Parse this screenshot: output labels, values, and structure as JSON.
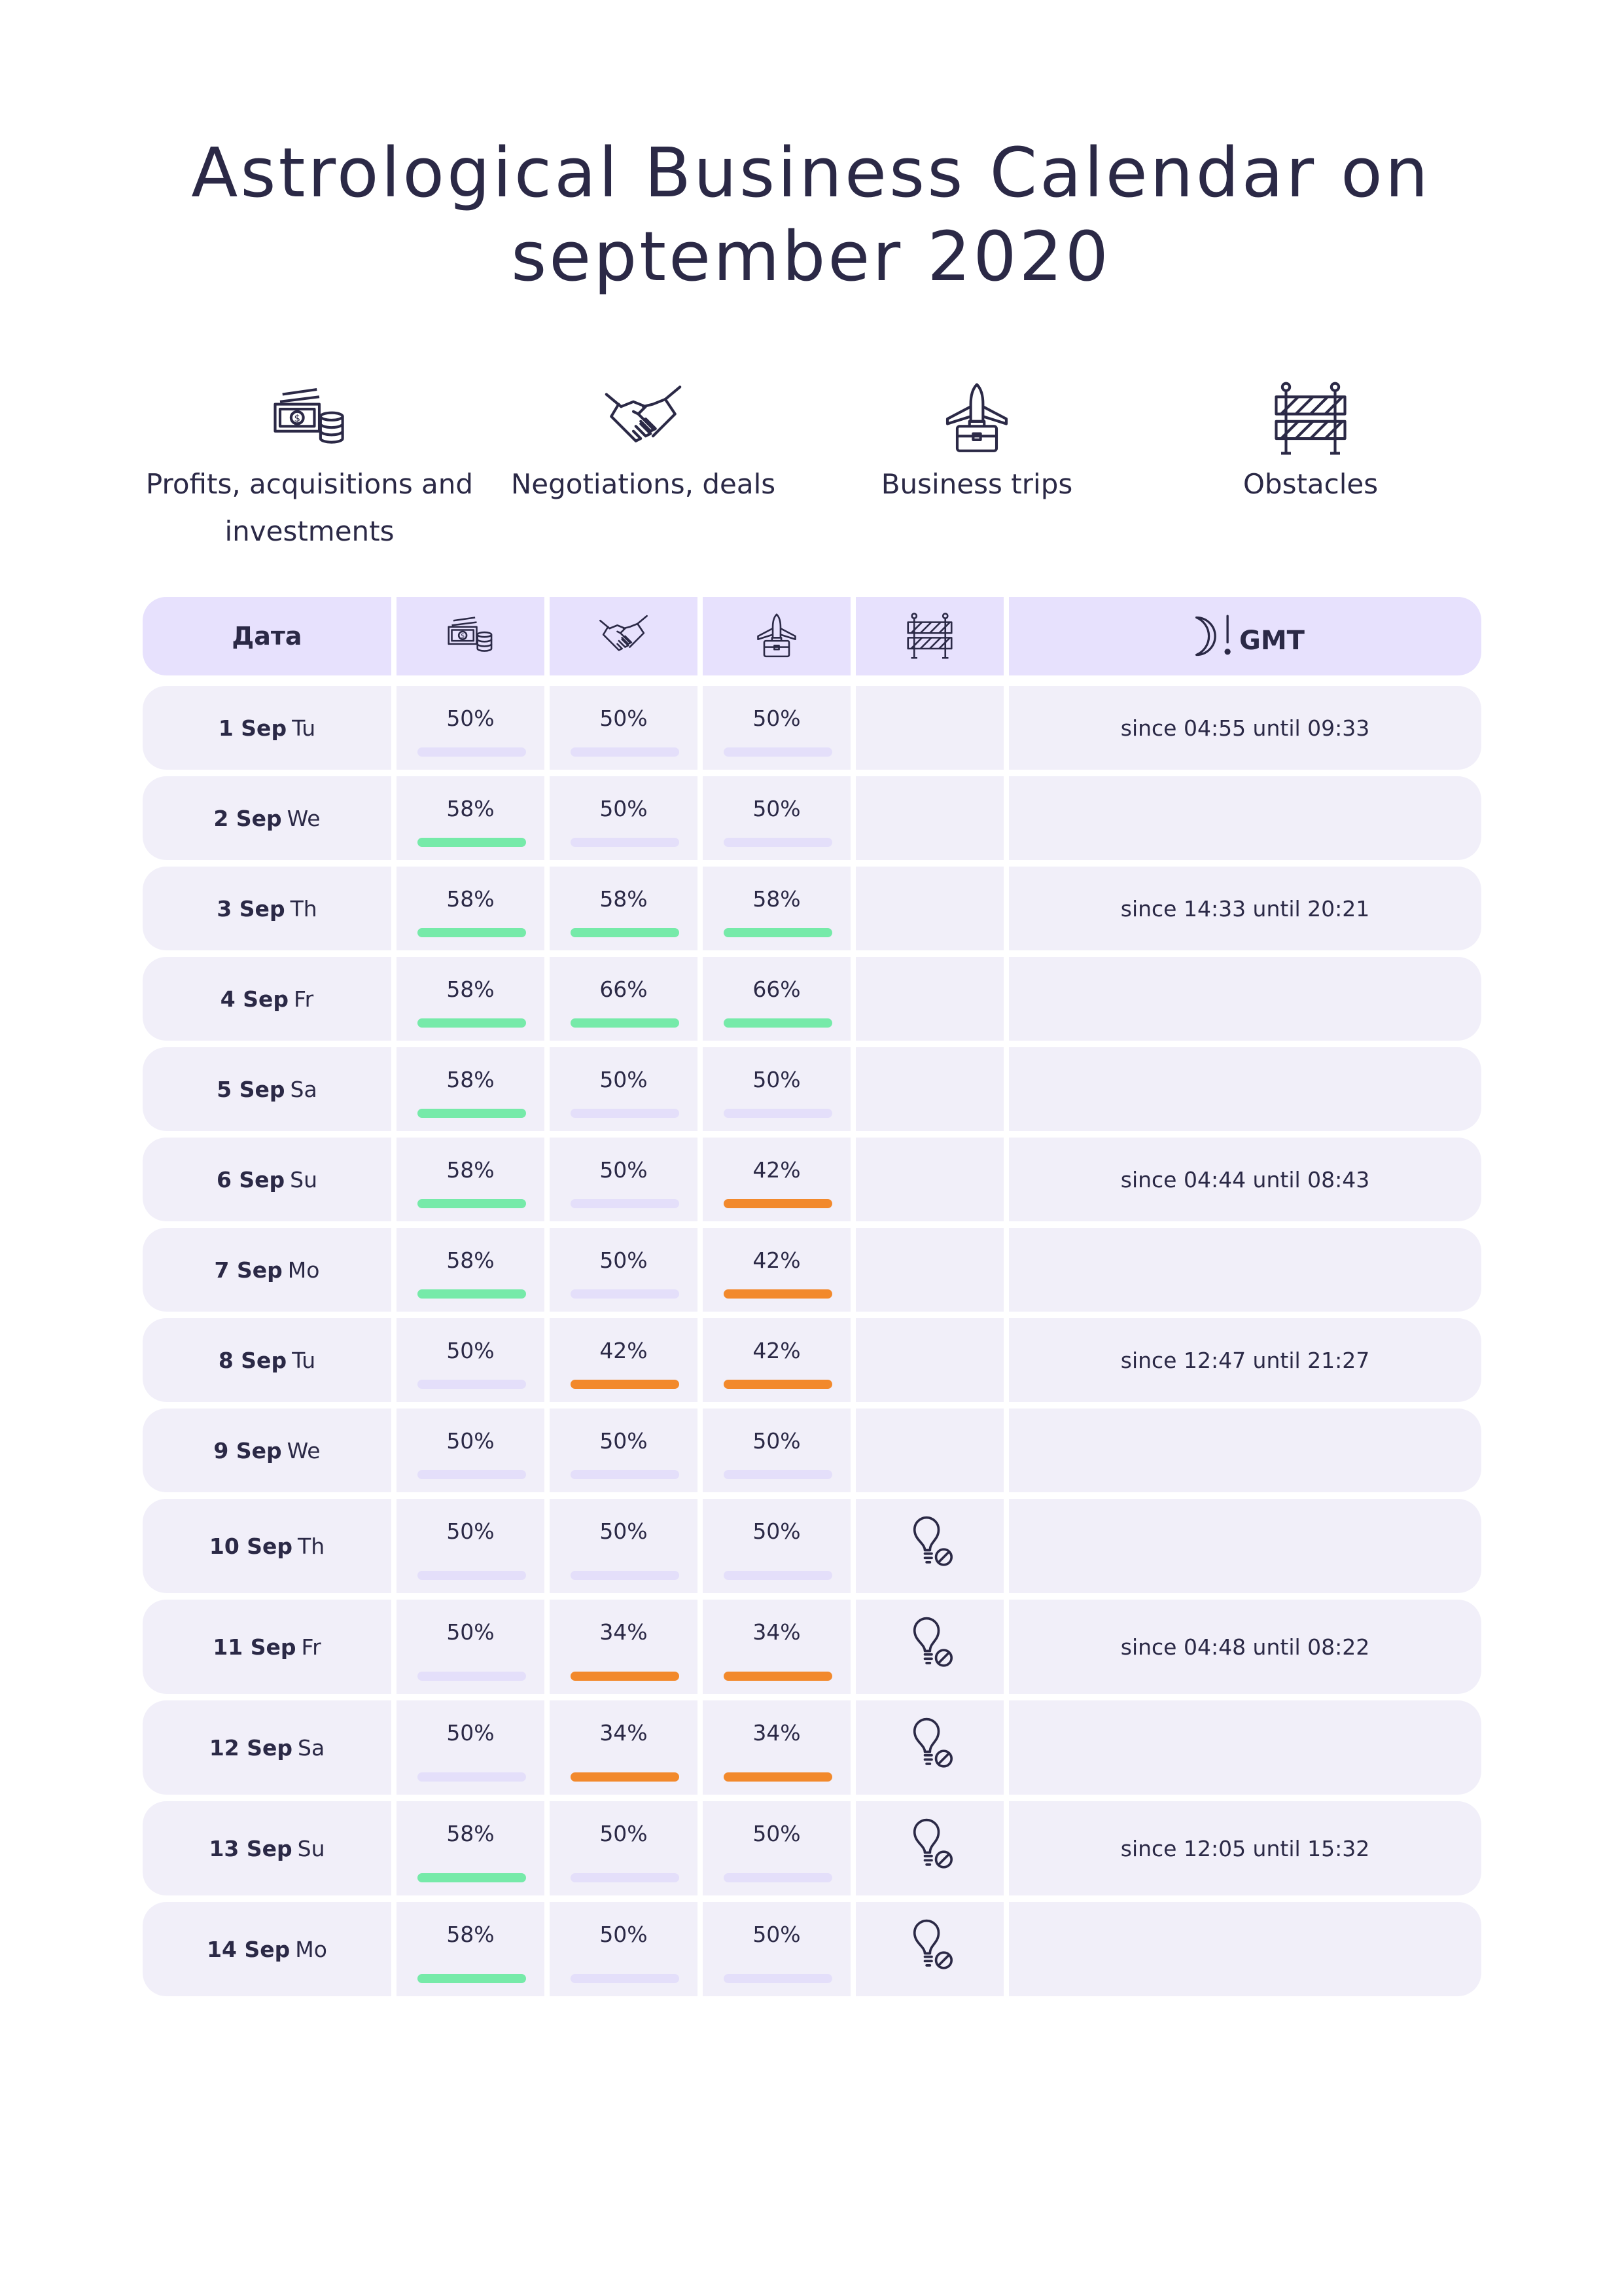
{
  "title_line1": "Astrological Business Calendar on",
  "title_line2": "september 2020",
  "legend": [
    {
      "icon": "money-coins-icon",
      "label_line1": "Profits, acquisitions and",
      "label_line2": "investments"
    },
    {
      "icon": "handshake-icon",
      "label_line1": "Negotiations, deals",
      "label_line2": ""
    },
    {
      "icon": "airplane-briefcase-icon",
      "label_line1": "Business trips",
      "label_line2": ""
    },
    {
      "icon": "barrier-icon",
      "label_line1": "Obstacles",
      "label_line2": ""
    }
  ],
  "header": {
    "date_label": "Дата",
    "moon_icon": "moon-warning-icon",
    "gmt_label": "GMT"
  },
  "colors": {
    "good": "#76eaa9",
    "bad": "#f2892c",
    "neutral": "#e4dffa"
  },
  "rows": [
    {
      "day": "1 Sep",
      "weekday": "Tu",
      "profits": "50%",
      "profits_state": "neutral",
      "deals": "50%",
      "deals_state": "neutral",
      "trips": "50%",
      "trips_state": "neutral",
      "obstacle": false,
      "moon": "since 04:55 until 09:33"
    },
    {
      "day": "2 Sep",
      "weekday": "We",
      "profits": "58%",
      "profits_state": "good",
      "deals": "50%",
      "deals_state": "neutral",
      "trips": "50%",
      "trips_state": "neutral",
      "obstacle": false,
      "moon": ""
    },
    {
      "day": "3 Sep",
      "weekday": "Th",
      "profits": "58%",
      "profits_state": "good",
      "deals": "58%",
      "deals_state": "good",
      "trips": "58%",
      "trips_state": "good",
      "obstacle": false,
      "moon": "since 14:33 until 20:21"
    },
    {
      "day": "4 Sep",
      "weekday": "Fr",
      "profits": "58%",
      "profits_state": "good",
      "deals": "66%",
      "deals_state": "good",
      "trips": "66%",
      "trips_state": "good",
      "obstacle": false,
      "moon": ""
    },
    {
      "day": "5 Sep",
      "weekday": "Sa",
      "profits": "58%",
      "profits_state": "good",
      "deals": "50%",
      "deals_state": "neutral",
      "trips": "50%",
      "trips_state": "neutral",
      "obstacle": false,
      "moon": ""
    },
    {
      "day": "6 Sep",
      "weekday": "Su",
      "profits": "58%",
      "profits_state": "good",
      "deals": "50%",
      "deals_state": "neutral",
      "trips": "42%",
      "trips_state": "bad",
      "obstacle": false,
      "moon": "since 04:44 until 08:43"
    },
    {
      "day": "7 Sep",
      "weekday": "Mo",
      "profits": "58%",
      "profits_state": "good",
      "deals": "50%",
      "deals_state": "neutral",
      "trips": "42%",
      "trips_state": "bad",
      "obstacle": false,
      "moon": ""
    },
    {
      "day": "8 Sep",
      "weekday": "Tu",
      "profits": "50%",
      "profits_state": "neutral",
      "deals": "42%",
      "deals_state": "bad",
      "trips": "42%",
      "trips_state": "bad",
      "obstacle": false,
      "moon": "since 12:47 until 21:27"
    },
    {
      "day": "9 Sep",
      "weekday": "We",
      "profits": "50%",
      "profits_state": "neutral",
      "deals": "50%",
      "deals_state": "neutral",
      "trips": "50%",
      "trips_state": "neutral",
      "obstacle": false,
      "moon": ""
    },
    {
      "day": "10 Sep",
      "weekday": "Th",
      "profits": "50%",
      "profits_state": "neutral",
      "deals": "50%",
      "deals_state": "neutral",
      "trips": "50%",
      "trips_state": "neutral",
      "obstacle": true,
      "moon": ""
    },
    {
      "day": "11 Sep",
      "weekday": "Fr",
      "profits": "50%",
      "profits_state": "neutral",
      "deals": "34%",
      "deals_state": "bad",
      "trips": "34%",
      "trips_state": "bad",
      "obstacle": true,
      "moon": "since 04:48 until 08:22"
    },
    {
      "day": "12 Sep",
      "weekday": "Sa",
      "profits": "50%",
      "profits_state": "neutral",
      "deals": "34%",
      "deals_state": "bad",
      "trips": "34%",
      "trips_state": "bad",
      "obstacle": true,
      "moon": ""
    },
    {
      "day": "13 Sep",
      "weekday": "Su",
      "profits": "58%",
      "profits_state": "good",
      "deals": "50%",
      "deals_state": "neutral",
      "trips": "50%",
      "trips_state": "neutral",
      "obstacle": true,
      "moon": "since 12:05 until 15:32"
    },
    {
      "day": "14 Sep",
      "weekday": "Mo",
      "profits": "58%",
      "profits_state": "good",
      "deals": "50%",
      "deals_state": "neutral",
      "trips": "50%",
      "trips_state": "neutral",
      "obstacle": true,
      "moon": ""
    }
  ]
}
